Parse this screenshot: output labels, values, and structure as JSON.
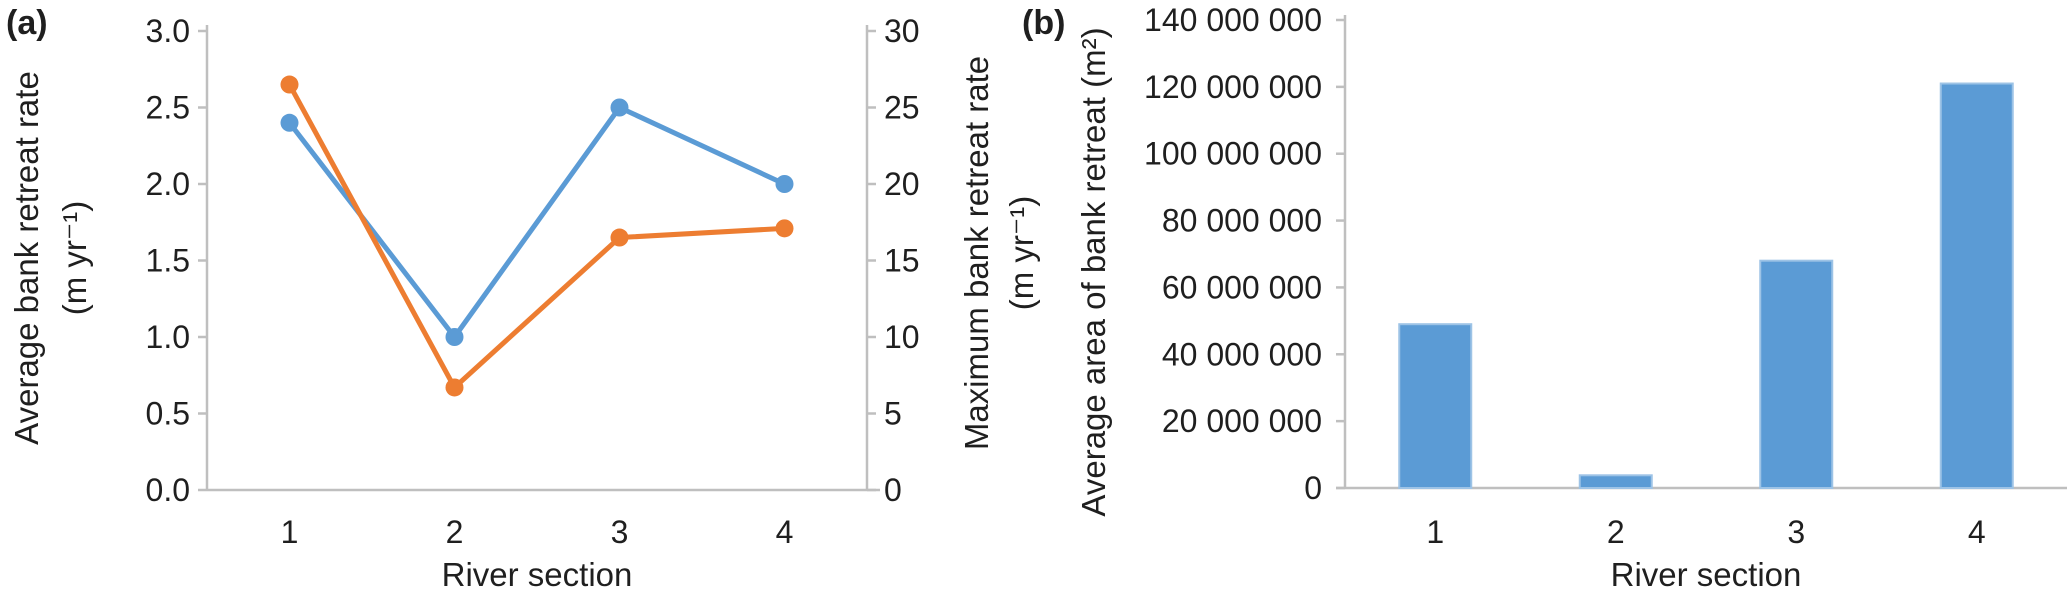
{
  "colors": {
    "series_blue": "#5B9BD5",
    "series_orange": "#ED7D31",
    "bar_fill": "#5B9BD5",
    "bar_edge": "#9DC3E6",
    "axis_line": "#BFBFBF",
    "text": "#1f1f1f",
    "background": "#ffffff"
  },
  "chart_data": [
    {
      "type": "line",
      "panel_label": "(a)",
      "categories": [
        "1",
        "2",
        "3",
        "4"
      ],
      "xlabel": "River section",
      "ylabel_left": "Average bank retreat rate",
      "ylabel_left_unit": "(m yr⁻¹)",
      "ylabel_right": "Maximum bank retreat rate",
      "ylabel_right_unit": "(m yr⁻¹)",
      "y_left_ticks": [
        "0.0",
        "0.5",
        "1.0",
        "1.5",
        "2.0",
        "2.5",
        "3.0"
      ],
      "y_right_ticks": [
        "0",
        "5",
        "10",
        "15",
        "20",
        "25",
        "30"
      ],
      "y_left_range": [
        0,
        3
      ],
      "y_right_range": [
        0,
        30
      ],
      "grid": false,
      "legend": "none",
      "series": [
        {
          "name": "Average bank retreat rate",
          "axis": "left",
          "color": "#5B9BD5",
          "values": [
            2.4,
            1.0,
            2.5,
            2.0
          ]
        },
        {
          "name": "Maximum bank retreat rate",
          "axis": "right",
          "color": "#ED7D31",
          "values": [
            26.5,
            6.7,
            16.5,
            17.1
          ]
        }
      ]
    },
    {
      "type": "bar",
      "panel_label": "(b)",
      "categories": [
        "1",
        "2",
        "3",
        "4"
      ],
      "xlabel": "River section",
      "ylabel": "Average area of bank retreat (m²)",
      "y_ticks": [
        "0",
        "20 000 000",
        "40 000 000",
        "60 000 000",
        "80 000 000",
        "100 000 000",
        "120 000 000",
        "140 000 000"
      ],
      "ylim": [
        0,
        140000000
      ],
      "grid": false,
      "legend": "none",
      "values": [
        49000000,
        3800000,
        68000000,
        121000000
      ]
    }
  ]
}
